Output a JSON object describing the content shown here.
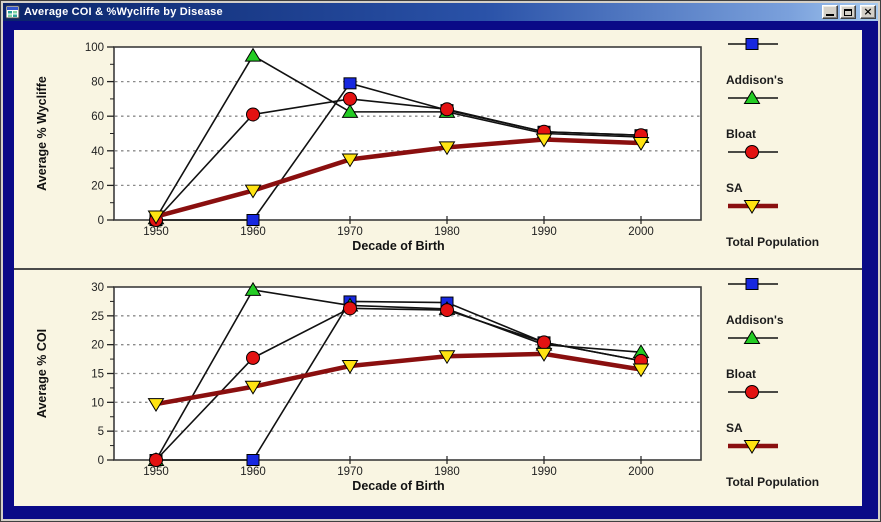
{
  "window": {
    "title": "Average COI & %Wycliffe by Disease",
    "controls": {
      "minimize": "minimize",
      "maximize": "maximize",
      "close_glyph": "×"
    }
  },
  "colors": {
    "titlebar_start": "#0a246a",
    "titlebar_end": "#a6caf0",
    "window_frame_navy": "#0a0a87",
    "content_cream": "#f9f5e2",
    "plot_background": "#ffffff",
    "plot_border": "#3c3c3c",
    "gridline": "#8a8a8a",
    "series_line_black": "#111111",
    "total_population_line": "#8a0f0f",
    "addisons_marker": "#1728e0",
    "bloat_marker": "#24cc24",
    "sa_marker": "#e31212",
    "total_population_marker": "#ffe312"
  },
  "legend_items": [
    "Addison's",
    "Bloat",
    "SA",
    "Total Population"
  ],
  "chart_data": [
    {
      "type": "line",
      "title": "",
      "ylabel": "Average % Wycliffe",
      "xlabel": "Decade of Birth",
      "categories": [
        1950,
        1960,
        1970,
        1980,
        1990,
        2000
      ],
      "ylim": [
        0,
        100
      ],
      "yticks": [
        0,
        20,
        40,
        60,
        80,
        100
      ],
      "minor_ytick_step": 10,
      "grid": "horizontal dashed at 20/40/60/80",
      "legend_position": "right",
      "series": [
        {
          "name": "Addison's",
          "marker": "square",
          "marker_color": "#1728e0",
          "line_color": "#111111",
          "line_width": 1.6,
          "values": [
            0,
            0,
            79,
            63.5,
            51,
            49
          ]
        },
        {
          "name": "Bloat",
          "marker": "triangle-up",
          "marker_color": "#24cc24",
          "line_color": "#111111",
          "line_width": 1.6,
          "values": [
            1,
            95,
            62.5,
            62.5,
            50,
            48
          ]
        },
        {
          "name": "SA",
          "marker": "circle",
          "marker_color": "#e31212",
          "line_color": "#111111",
          "line_width": 1.6,
          "values": [
            0,
            61,
            70,
            64,
            51,
            49
          ]
        },
        {
          "name": "Total Population",
          "marker": "triangle-down",
          "marker_color": "#ffe312",
          "line_color": "#8a0f0f",
          "line_width": 4.5,
          "values": [
            2,
            17,
            35,
            42,
            46.5,
            44.5
          ]
        }
      ]
    },
    {
      "type": "line",
      "title": "",
      "ylabel": "Average % COI",
      "xlabel": "Decade of Birth",
      "categories": [
        1950,
        1960,
        1970,
        1980,
        1990,
        2000
      ],
      "ylim": [
        0,
        30
      ],
      "yticks": [
        0,
        5,
        10,
        15,
        20,
        25,
        30
      ],
      "minor_ytick_step": 2.5,
      "grid": "horizontal dashed at 5/10/15/20/25",
      "legend_position": "right",
      "series": [
        {
          "name": "Addison's",
          "marker": "square",
          "marker_color": "#1728e0",
          "line_color": "#111111",
          "line_width": 1.6,
          "values": [
            0,
            0,
            27.5,
            27.3,
            20.4,
            17.2
          ]
        },
        {
          "name": "Bloat",
          "marker": "triangle-up",
          "marker_color": "#24cc24",
          "line_color": "#111111",
          "line_width": 1.6,
          "values": [
            0,
            29.5,
            26.8,
            26.2,
            20,
            18.7
          ]
        },
        {
          "name": "SA",
          "marker": "circle",
          "marker_color": "#e31212",
          "line_color": "#111111",
          "line_width": 1.6,
          "values": [
            0,
            17.7,
            26.3,
            26,
            20.4,
            17.2
          ]
        },
        {
          "name": "Total Population",
          "marker": "triangle-down",
          "marker_color": "#ffe312",
          "line_color": "#8a0f0f",
          "line_width": 4.5,
          "values": [
            9.7,
            12.7,
            16.3,
            18,
            18.4,
            15.7
          ]
        }
      ]
    }
  ]
}
